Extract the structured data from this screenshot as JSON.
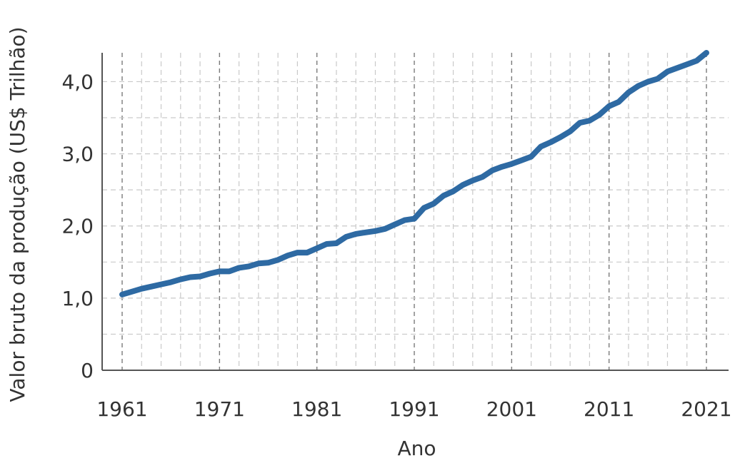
{
  "chart_data": {
    "type": "line",
    "title": "",
    "xlabel": "Ano",
    "ylabel": "Valor bruto da produção (US$ Trilhão)",
    "xlim": [
      1961,
      2021
    ],
    "ylim": [
      0,
      4.4
    ],
    "grid": true,
    "x_ticks": [
      1961,
      1971,
      1981,
      1991,
      2001,
      2011,
      2021
    ],
    "x_tick_labels": [
      "1961",
      "1971",
      "1981",
      "1991",
      "2001",
      "2011",
      "2021"
    ],
    "y_ticks": [
      0,
      1,
      2,
      3,
      4
    ],
    "y_tick_labels": [
      "0",
      "1,0",
      "2,0",
      "3,0",
      "4,0"
    ],
    "series": [
      {
        "color": "#2e6aa3",
        "x": [
          1961,
          1962,
          1963,
          1964,
          1965,
          1966,
          1967,
          1968,
          1969,
          1970,
          1971,
          1972,
          1973,
          1974,
          1975,
          1976,
          1977,
          1978,
          1979,
          1980,
          1981,
          1982,
          1983,
          1984,
          1985,
          1986,
          1987,
          1988,
          1989,
          1990,
          1991,
          1992,
          1993,
          1994,
          1995,
          1996,
          1997,
          1998,
          1999,
          2000,
          2001,
          2002,
          2003,
          2004,
          2005,
          2006,
          2007,
          2008,
          2009,
          2010,
          2011,
          2012,
          2013,
          2014,
          2015,
          2016,
          2017,
          2018,
          2019,
          2020,
          2021
        ],
        "values": [
          1.05,
          1.09,
          1.13,
          1.16,
          1.19,
          1.22,
          1.26,
          1.29,
          1.3,
          1.34,
          1.37,
          1.37,
          1.42,
          1.44,
          1.48,
          1.49,
          1.53,
          1.59,
          1.63,
          1.63,
          1.69,
          1.75,
          1.76,
          1.85,
          1.89,
          1.91,
          1.93,
          1.96,
          2.02,
          2.08,
          2.1,
          2.25,
          2.31,
          2.42,
          2.48,
          2.57,
          2.63,
          2.68,
          2.77,
          2.82,
          2.86,
          2.91,
          2.96,
          3.1,
          3.16,
          3.23,
          3.31,
          3.43,
          3.46,
          3.54,
          3.66,
          3.72,
          3.85,
          3.94,
          4.0,
          4.04,
          4.14,
          4.19,
          4.24,
          4.29,
          4.4
        ]
      }
    ]
  }
}
